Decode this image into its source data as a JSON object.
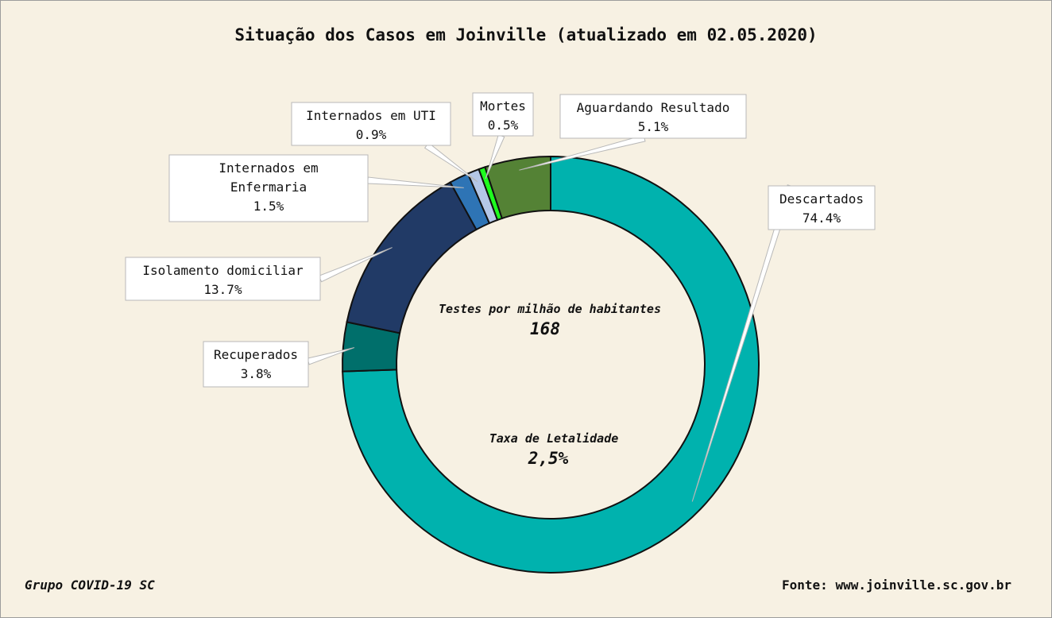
{
  "chart_data": {
    "type": "pie",
    "variant": "donut",
    "title": "Situação dos Casos em Joinville (atualizado em 02.05.2020)",
    "slices": [
      {
        "label": "Descartados",
        "value": 74.4,
        "pct": "74.4%",
        "color": "#00b2ae"
      },
      {
        "label": "Recuperados",
        "value": 3.8,
        "pct": "3.8%",
        "color": "#006f6b"
      },
      {
        "label": "Isolamento domiciliar",
        "value": 13.7,
        "pct": "13.7%",
        "color": "#213a66"
      },
      {
        "label": "Internados em Enfermaria",
        "value": 1.5,
        "pct": "1.5%",
        "color": "#2e74b5"
      },
      {
        "label": "Internados em UTI",
        "value": 0.9,
        "pct": "0.9%",
        "color": "#b4c7e7"
      },
      {
        "label": "Mortes",
        "value": 0.5,
        "pct": "0.5%",
        "color": "#1eff1e"
      },
      {
        "label": "Aguardando Resultado",
        "value": 5.1,
        "pct": "5.1%",
        "color": "#548235"
      }
    ],
    "legend": "none"
  },
  "center": {
    "tests_label": "Testes por milhão de habitantes",
    "tests_value": "168",
    "lethality_label": "Taxa de Letalidade",
    "lethality_value": "2,5%"
  },
  "footer": {
    "left": "Grupo COVID-19 SC",
    "right": "Fonte: www.joinville.sc.gov.br"
  },
  "colors": {
    "background": "#f7f1e3",
    "stroke": "#111111"
  }
}
